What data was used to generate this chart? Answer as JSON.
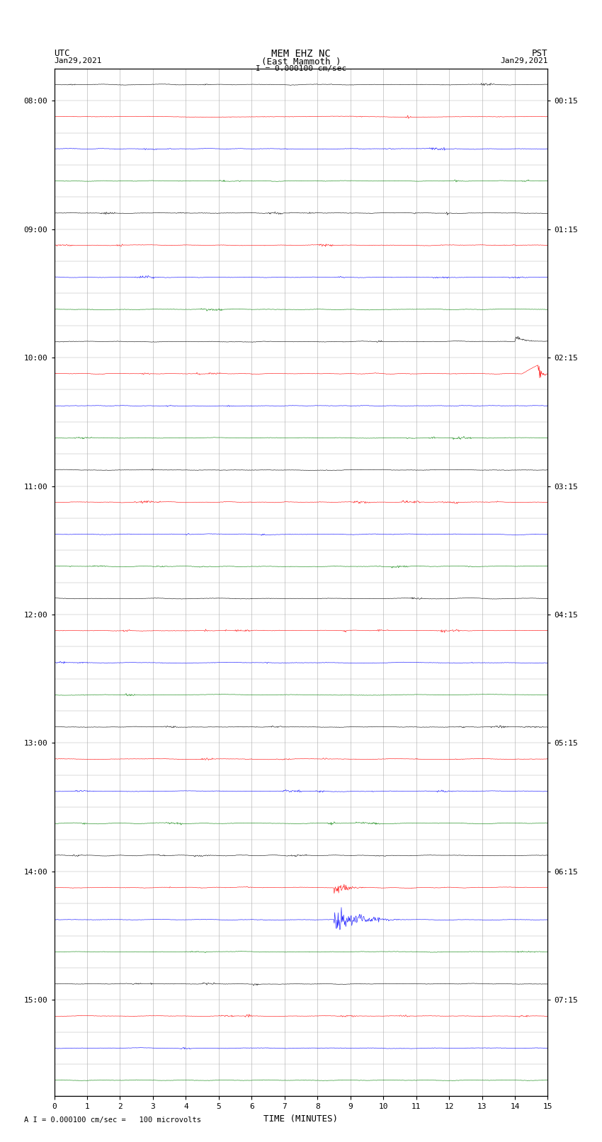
{
  "title_line1": "MEM EHZ NC",
  "title_line2": "(East Mammoth )",
  "scale_label": "I = 0.000100 cm/sec",
  "bottom_label": "A I = 0.000100 cm/sec =   100 microvolts",
  "xlabel": "TIME (MINUTES)",
  "bg_color": "#ffffff",
  "trace_colors": [
    "black",
    "red",
    "blue",
    "green"
  ],
  "grid_color": "#aaaaaa",
  "n_rows": 32,
  "fig_width": 8.5,
  "fig_height": 16.13,
  "dpi": 100,
  "xmin": 0,
  "xmax": 15,
  "xticks": [
    0,
    1,
    2,
    3,
    4,
    5,
    6,
    7,
    8,
    9,
    10,
    11,
    12,
    13,
    14,
    15
  ],
  "noise_level": 0.012
}
